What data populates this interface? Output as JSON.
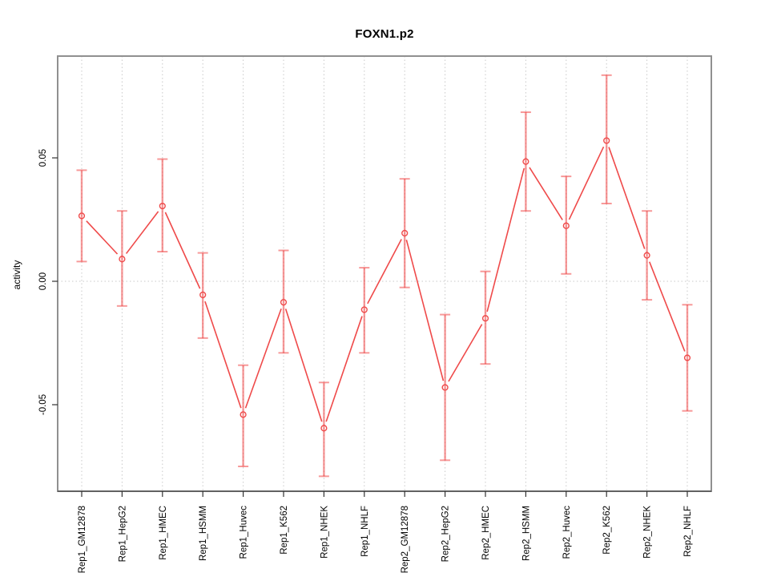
{
  "chart_data": {
    "type": "line",
    "title": "FOXN1.p2",
    "xlabel": "",
    "ylabel": "activity",
    "categories": [
      "Rep1_GM12878",
      "Rep1_HepG2",
      "Rep1_HMEC",
      "Rep1_HSMM",
      "Rep1_Huvec",
      "Rep1_K562",
      "Rep1_NHEK",
      "Rep1_NHLF",
      "Rep2_GM12878",
      "Rep2_HepG2",
      "Rep2_HMEC",
      "Rep2_HSMM",
      "Rep2_Huvec",
      "Rep2_K562",
      "Rep2_NHEK",
      "Rep2_NHLF"
    ],
    "series": [
      {
        "name": "activity",
        "values": [
          0.0265,
          0.009,
          0.0305,
          -0.0055,
          -0.054,
          -0.0085,
          -0.0595,
          -0.0115,
          0.0195,
          -0.043,
          -0.015,
          0.0485,
          0.0225,
          0.057,
          0.0105,
          -0.031
        ],
        "error_low": [
          0.008,
          -0.01,
          0.012,
          -0.023,
          -0.075,
          -0.029,
          -0.079,
          -0.029,
          -0.0025,
          -0.0725,
          -0.0335,
          0.0285,
          0.003,
          0.0315,
          -0.0075,
          -0.0525
        ],
        "error_high": [
          0.045,
          0.0285,
          0.0495,
          0.0115,
          -0.034,
          0.0125,
          -0.041,
          0.0055,
          0.0415,
          -0.0135,
          0.004,
          0.0685,
          0.0425,
          0.0835,
          0.0285,
          -0.0095
        ]
      }
    ],
    "yticks": [
      -0.05,
      0,
      0.05
    ],
    "ytick_labels": [
      "-0.05",
      "0.00",
      "0.05"
    ],
    "ylim": [
      -0.086,
      0.092
    ],
    "grid": "dotted vertical line at each category; dotted horizontal line at y=0",
    "legend_position": "none",
    "marker": "open-circle",
    "colors": {
      "line": "#ef4a4a",
      "error_bar": "rgba(240,70,70,0.55)",
      "grid": "#c9c9c9",
      "box": "#909090",
      "axis": "#333333",
      "text": "#000000",
      "background": "#ffffff"
    }
  }
}
